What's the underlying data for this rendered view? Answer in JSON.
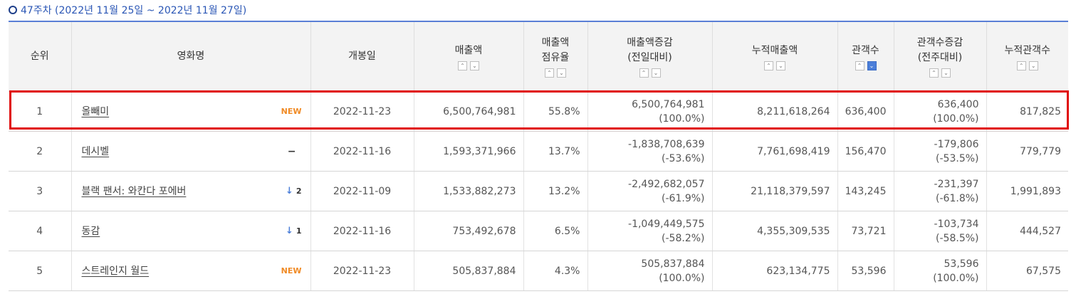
{
  "header": {
    "period_label": "47주차 (2022년 11월 25일 ~ 2022년 11월 27일)"
  },
  "table": {
    "columns": {
      "rank": "순위",
      "title": "영화명",
      "release": "개봉일",
      "sales": "매출액",
      "share_l1": "매출액",
      "share_l2": "점유율",
      "sales_chg_l1": "매출액증감",
      "sales_chg_l2": "(전일대비)",
      "cum_sales": "누적매출액",
      "audience": "관객수",
      "aud_chg_l1": "관객수증감",
      "aud_chg_l2": "(전주대비)",
      "cum_audience": "누적관객수"
    },
    "sort_up_glyph": "⌃",
    "sort_down_glyph": "⌄",
    "active_sort": "audience-desc",
    "rows": [
      {
        "rank": "1",
        "title": "올빼미",
        "badge": "NEW",
        "release": "2022-11-23",
        "sales": "6,500,764,981",
        "share": "55.8%",
        "sales_chg": "6,500,764,981",
        "sales_chg_pct": "(100.0%)",
        "cum_sales": "8,211,618,264",
        "audience": "636,400",
        "aud_chg": "636,400",
        "aud_chg_pct": "(100.0%)",
        "cum_audience": "817,825"
      },
      {
        "rank": "2",
        "title": "데시벨",
        "badge": "−",
        "release": "2022-11-16",
        "sales": "1,593,371,966",
        "share": "13.7%",
        "sales_chg": "-1,838,708,639",
        "sales_chg_pct": "(-53.6%)",
        "cum_sales": "7,761,698,419",
        "audience": "156,470",
        "aud_chg": "-179,806",
        "aud_chg_pct": "(-53.5%)",
        "cum_audience": "779,779"
      },
      {
        "rank": "3",
        "title": "블랙 팬서: 와칸다 포에버",
        "badge_arrow": "↓",
        "badge": "2",
        "release": "2022-11-09",
        "sales": "1,533,882,273",
        "share": "13.2%",
        "sales_chg": "-2,492,682,057",
        "sales_chg_pct": "(-61.9%)",
        "cum_sales": "21,118,379,597",
        "audience": "143,245",
        "aud_chg": "-231,397",
        "aud_chg_pct": "(-61.8%)",
        "cum_audience": "1,991,893"
      },
      {
        "rank": "4",
        "title": "동감",
        "badge_arrow": "↓",
        "badge": "1",
        "release": "2022-11-16",
        "sales": "753,492,678",
        "share": "6.5%",
        "sales_chg": "-1,049,449,575",
        "sales_chg_pct": "(-58.2%)",
        "cum_sales": "4,355,309,535",
        "audience": "73,721",
        "aud_chg": "-103,734",
        "aud_chg_pct": "(-58.5%)",
        "cum_audience": "444,527"
      },
      {
        "rank": "5",
        "title": "스트레인지 월드",
        "badge": "NEW",
        "release": "2022-11-23",
        "sales": "505,837,884",
        "share": "4.3%",
        "sales_chg": "505,837,884",
        "sales_chg_pct": "(100.0%)",
        "cum_sales": "623,134,775",
        "audience": "53,596",
        "aud_chg": "53,596",
        "aud_chg_pct": "(100.0%)",
        "cum_audience": "67,575"
      }
    ]
  },
  "colors": {
    "accent_blue": "#4c7fd9",
    "new_badge": "#f08a24",
    "highlight": "#e00a0a"
  }
}
